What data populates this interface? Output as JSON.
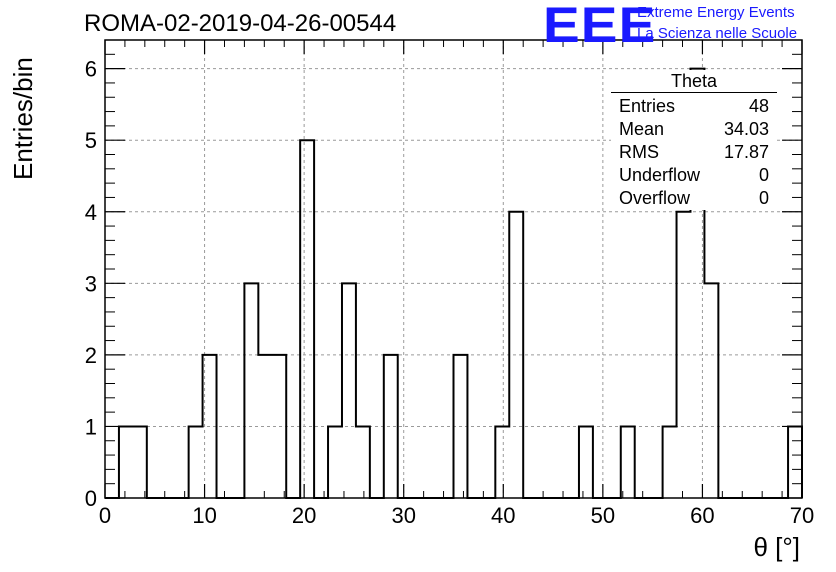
{
  "header": {
    "title": "ROMA-02-2019-04-26-00544",
    "logo_text": "EEE",
    "logo_line1": "Extreme Energy Events",
    "logo_line2": "La Scienza nelle Scuole"
  },
  "stats_box": {
    "title": "Theta",
    "rows": [
      {
        "label": "Entries",
        "value": "48"
      },
      {
        "label": "Mean",
        "value": "34.03"
      },
      {
        "label": "RMS",
        "value": "17.87"
      },
      {
        "label": "Underflow",
        "value": "0"
      },
      {
        "label": "Overflow",
        "value": "0"
      }
    ]
  },
  "chart_data": {
    "type": "bar",
    "title": "ROMA-02-2019-04-26-00544",
    "xlabel": "θ [°]",
    "ylabel": "Entries/bin",
    "xlim": [
      0,
      70
    ],
    "ylim": [
      0,
      6.4
    ],
    "x_ticks": [
      "0",
      "10",
      "20",
      "30",
      "40",
      "50",
      "60",
      "70"
    ],
    "y_ticks": [
      "0",
      "1",
      "2",
      "3",
      "4",
      "5",
      "6"
    ],
    "grid": true,
    "histogram_style": "step",
    "bin_width": 1.4,
    "bin_edges": [
      0,
      1.4,
      2.8,
      4.2,
      5.6,
      7,
      8.4,
      9.8,
      11.2,
      12.6,
      14,
      15.4,
      16.8,
      18.2,
      19.6,
      21,
      22.4,
      23.8,
      25.2,
      26.6,
      28,
      29.4,
      30.8,
      32.2,
      33.6,
      35,
      36.4,
      37.8,
      39.2,
      40.6,
      42,
      43.4,
      44.8,
      46.2,
      47.6,
      49,
      50.4,
      51.8,
      53.2,
      54.6,
      56,
      57.4,
      58.8,
      60.2,
      61.6,
      63,
      64.4,
      65.8,
      67.2,
      68.6,
      70
    ],
    "values": [
      0,
      1,
      1,
      0,
      0,
      0,
      1,
      2,
      0,
      0,
      3,
      2,
      2,
      0,
      5,
      0,
      1,
      3,
      1,
      0,
      2,
      0,
      0,
      0,
      0,
      2,
      0,
      0,
      1,
      4,
      0,
      0,
      0,
      0,
      1,
      0,
      0,
      1,
      0,
      0,
      1,
      4,
      6,
      3,
      0,
      0,
      0,
      0,
      0,
      1
    ]
  }
}
